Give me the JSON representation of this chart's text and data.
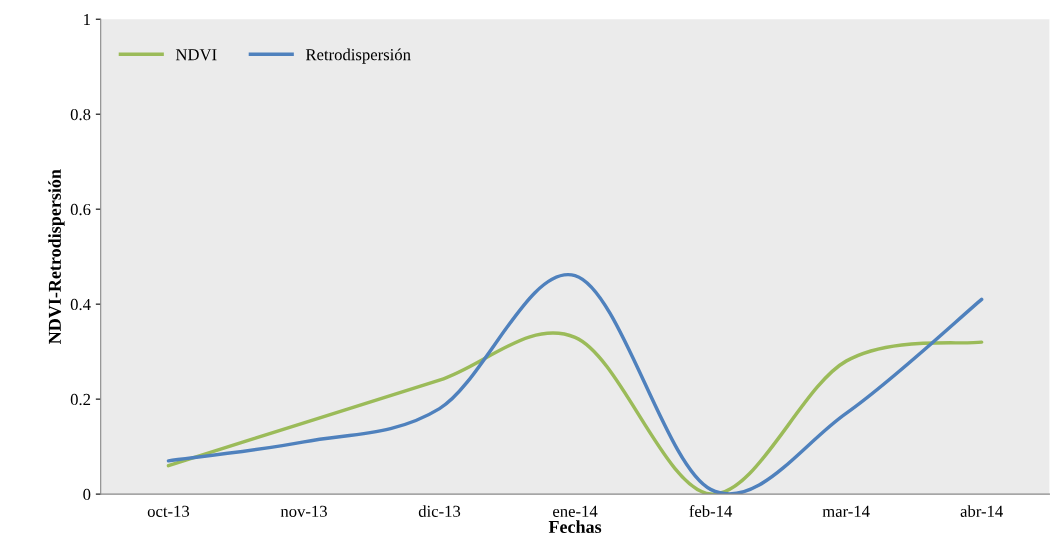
{
  "chart_data": {
    "type": "line",
    "xlabel": "Fechas",
    "ylabel": "NDVI-Retrodispersión",
    "categories": [
      "oct-13",
      "nov-13",
      "dic-13",
      "ene-14",
      "feb-14",
      "mar-14",
      "abr-14"
    ],
    "series": [
      {
        "name": "NDVI",
        "color": "#9bbb59",
        "values": [
          0.06,
          0.15,
          0.24,
          0.33,
          0.0,
          0.28,
          0.32
        ]
      },
      {
        "name": "Retrodispersión",
        "color": "#4f81bd",
        "values": [
          0.07,
          0.11,
          0.18,
          0.46,
          0.01,
          0.17,
          0.41
        ]
      }
    ],
    "ylim": [
      0,
      1
    ],
    "yticks": [
      0,
      0.2,
      0.4,
      0.6,
      0.8,
      1
    ],
    "grid": false,
    "legend": "top left",
    "marker": "none",
    "line_style": "solid"
  }
}
